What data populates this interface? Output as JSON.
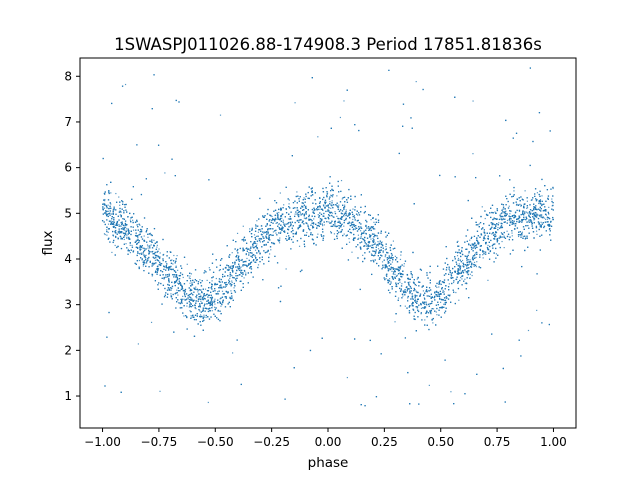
{
  "chart_data": {
    "type": "scatter",
    "title": "1SWASPJ011026.88-174908.3 Period 17851.81836s",
    "xlabel": "phase",
    "ylabel": "flux",
    "xlim": [
      -1.1,
      1.1
    ],
    "ylim": [
      0.3,
      8.4
    ],
    "xticks": [
      -1.0,
      -0.75,
      -0.5,
      -0.25,
      0.0,
      0.25,
      0.5,
      0.75,
      1.0
    ],
    "xtick_labels": [
      "−1.00",
      "−0.75",
      "−0.50",
      "−0.25",
      "0.00",
      "0.25",
      "0.50",
      "0.75",
      "1.00"
    ],
    "yticks": [
      1,
      2,
      3,
      4,
      5,
      6,
      7,
      8
    ],
    "ytick_labels": [
      "1",
      "2",
      "3",
      "4",
      "5",
      "6",
      "7",
      "8"
    ],
    "grid": false,
    "legend": "none",
    "series": [
      {
        "color": "#1f77b4",
        "description_model": "folded light curve, symmetric about phase 0, repeating twice over [-1,1]",
        "max_flux": 5.0,
        "min_flux": 3.05,
        "minimum_phases": [
          -0.55,
          0.45
        ],
        "maximum_phases": [
          -1.0,
          0.0,
          1.0
        ],
        "x": [
          -1.0,
          -0.9,
          -0.8,
          -0.7,
          -0.6,
          -0.55,
          -0.5,
          -0.4,
          -0.3,
          -0.2,
          -0.1,
          0.0,
          0.1,
          0.2,
          0.3,
          0.4,
          0.45,
          0.5,
          0.6,
          0.7,
          0.8,
          0.9,
          1.0
        ],
        "y": [
          4.95,
          4.7,
          4.2,
          3.6,
          3.15,
          3.05,
          3.2,
          3.8,
          4.4,
          4.8,
          4.95,
          5.0,
          4.85,
          4.4,
          3.75,
          3.15,
          3.05,
          3.2,
          3.85,
          4.5,
          4.85,
          4.95,
          5.0
        ]
      }
    ]
  }
}
